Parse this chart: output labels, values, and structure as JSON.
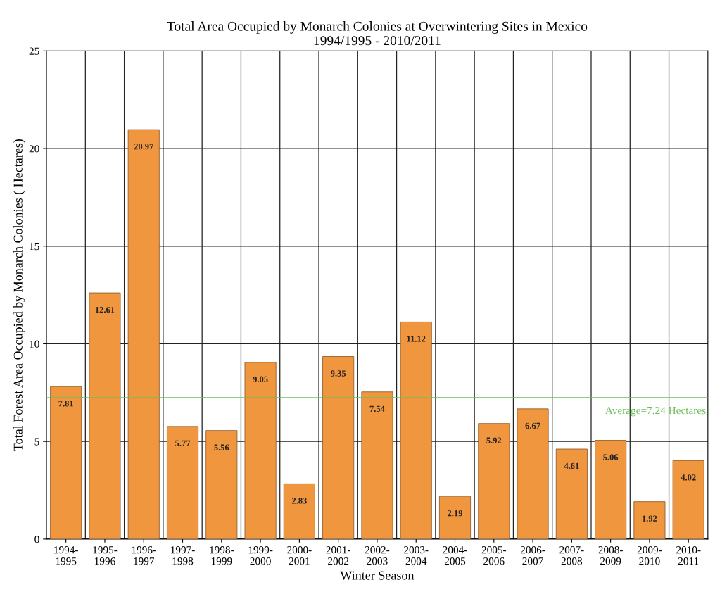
{
  "chart_data": {
    "type": "bar",
    "title": "Total Area Occupied by Monarch Colonies at Overwintering Sites in Mexico\n1994/1995 - 2010/2011",
    "xlabel": "Winter Season",
    "ylabel": "Total Forest Area Occupied by Monarch Colonies ( Hectares)",
    "categories": [
      "1994-\n1995",
      "1995-\n1996",
      "1996-\n1997",
      "1997-\n1998",
      "1998-\n1999",
      "1999-\n2000",
      "2000-\n2001",
      "2001-\n2002",
      "2002-\n2003",
      "2003-\n2004",
      "2004-\n2005",
      "2005-\n2006",
      "2006-\n2007",
      "2007-\n2008",
      "2008-\n2009",
      "2009-\n2010",
      "2010-\n2011"
    ],
    "values": [
      7.81,
      12.61,
      20.97,
      5.77,
      5.56,
      9.05,
      2.83,
      9.35,
      7.54,
      11.12,
      2.19,
      5.92,
      6.67,
      4.61,
      5.06,
      1.92,
      4.02
    ],
    "color": "#f0963f",
    "data_labels": true,
    "ylim": [
      0,
      25
    ],
    "yticks": [
      0,
      5,
      10,
      15,
      20,
      25
    ],
    "grid": true,
    "ref_lines": [
      {
        "axis": "y",
        "value": 7.24,
        "label": "Average=7.24 Hectares",
        "color": "#6cbf5a"
      }
    ]
  }
}
